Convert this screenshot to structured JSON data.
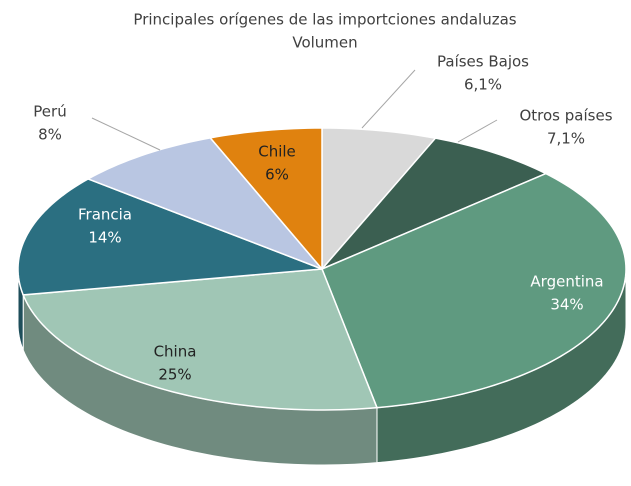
{
  "chart_data": {
    "type": "pie",
    "title": "Principales orígenes de las importciones andaluzas",
    "subtitle": "Volumen",
    "categories": [
      "Países Bajos",
      "Otros países",
      "Argentina",
      "China",
      "Francia",
      "Perú",
      "Chile"
    ],
    "values": [
      6.1,
      7.1,
      34,
      25,
      14,
      8,
      6
    ],
    "value_labels": [
      "6,1%",
      "7,1%",
      "34%",
      "25%",
      "14%",
      "8%",
      "6%"
    ],
    "colors": [
      "#d9d9d9",
      "#3b5f51",
      "#5f9a80",
      "#a0c6b5",
      "#2b6f81",
      "#b9c6e2",
      "#e0820f"
    ]
  }
}
